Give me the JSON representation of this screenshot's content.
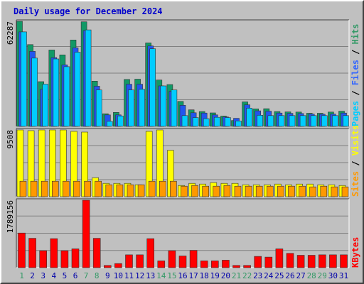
{
  "chart_data": {
    "type": "bar",
    "title": "Daily usage for December 2024",
    "categories": [
      "1",
      "2",
      "3",
      "4",
      "5",
      "6",
      "7",
      "8",
      "9",
      "10",
      "11",
      "12",
      "13",
      "14",
      "15",
      "16",
      "17",
      "18",
      "19",
      "20",
      "21",
      "22",
      "23",
      "24",
      "25",
      "26",
      "27",
      "28",
      "29",
      "30",
      "31"
    ],
    "weekend_days": [
      "1",
      "7",
      "8",
      "14",
      "15",
      "21",
      "22",
      "28",
      "29"
    ],
    "weekend_color": "#339966",
    "weekday_color": "#0000aa",
    "panels": [
      {
        "id": "pages-files-hits",
        "max_label": "62287",
        "ylim": [
          0,
          62287
        ],
        "legend": [
          {
            "text": "Pages",
            "color": "#00ccff"
          },
          {
            "text": " / ",
            "color": "#000000"
          },
          {
            "text": "Files",
            "color": "#3366ff"
          },
          {
            "text": " / ",
            "color": "#000000"
          },
          {
            "text": "Hits",
            "color": "#339966"
          }
        ],
        "series": [
          {
            "name": "Hits",
            "color": "#119966",
            "values": [
              62287,
              48500,
              26500,
              45300,
              42400,
              51200,
              62000,
              26800,
              7500,
              8300,
              27800,
              28000,
              49500,
              27500,
              24800,
              14800,
              9800,
              8800,
              8000,
              6100,
              3500,
              14500,
              10400,
              10500,
              8800,
              8600,
              8500,
              7800,
              7800,
              8500,
              9000
            ]
          },
          {
            "name": "Files",
            "color": "#2255ee",
            "values": [
              56000,
              44500,
              22000,
              40800,
              36500,
              46600,
              56800,
              23800,
              6800,
              6800,
              25000,
              25000,
              47700,
              24000,
              20800,
              12500,
              8100,
              7900,
              6800,
              5600,
              4800,
              12800,
              9200,
              9000,
              7900,
              7700,
              7600,
              7300,
              7200,
              7300,
              7900
            ]
          },
          {
            "name": "Pages",
            "color": "#00ccff",
            "values": [
              56000,
              40500,
              25000,
              40000,
              35400,
              44000,
              57200,
              21600,
              3000,
              6200,
              21600,
              22000,
              46000,
              24000,
              21600,
              6400,
              5200,
              4600,
              5400,
              5200,
              3200,
              10800,
              6600,
              6400,
              6400,
              6400,
              6400,
              6400,
              6400,
              6400,
              6400
            ]
          }
        ]
      },
      {
        "id": "visits-sites",
        "max_label": "9508",
        "ylim": [
          0,
          9508
        ],
        "legend": [
          {
            "text": "Sites",
            "color": "#ff9900"
          },
          {
            "text": " / ",
            "color": "#000000"
          },
          {
            "text": "Visits",
            "color": "#ffff00"
          }
        ],
        "series": [
          {
            "name": "Visits",
            "color": "#ffff00",
            "values": [
              9508,
              9408,
              9508,
              9508,
              9508,
              9308,
              9208,
              2700,
              1900,
              1900,
              1900,
              1700,
              9308,
              9508,
              6600,
              1600,
              1900,
              1800,
              2000,
              1900,
              1900,
              1700,
              1700,
              1700,
              1800,
              1700,
              1800,
              1800,
              1700,
              1700,
              1600
            ]
          },
          {
            "name": "Sites",
            "color": "#ff9900",
            "values": [
              2200,
              2200,
              2200,
              2200,
              2200,
              2200,
              2200,
              2200,
              1700,
              1700,
              1700,
              1700,
              2200,
              2200,
              2200,
              1500,
              1600,
              1500,
              1500,
              1600,
              1500,
              1500,
              1500,
              1500,
              1500,
              1500,
              1500,
              1400,
              1500,
              1400,
              1400
            ]
          }
        ]
      },
      {
        "id": "kbytes",
        "max_label": "1789156",
        "ylim": [
          0,
          1789156
        ],
        "legend": [
          {
            "text": "KBytes",
            "color": "#ff0000"
          }
        ],
        "series": [
          {
            "name": "KBytes",
            "color": "#ff0000",
            "values": [
              920000,
              780000,
              450000,
              770000,
              450000,
              500000,
              1789156,
              780000,
              60000,
              110000,
              340000,
              340000,
              770000,
              180000,
              450000,
              310000,
              460000,
              180000,
              180000,
              200000,
              60000,
              60000,
              300000,
              280000,
              500000,
              380000,
              330000,
              330000,
              340000,
              340000,
              340000
            ]
          }
        ]
      }
    ],
    "grid": true
  }
}
